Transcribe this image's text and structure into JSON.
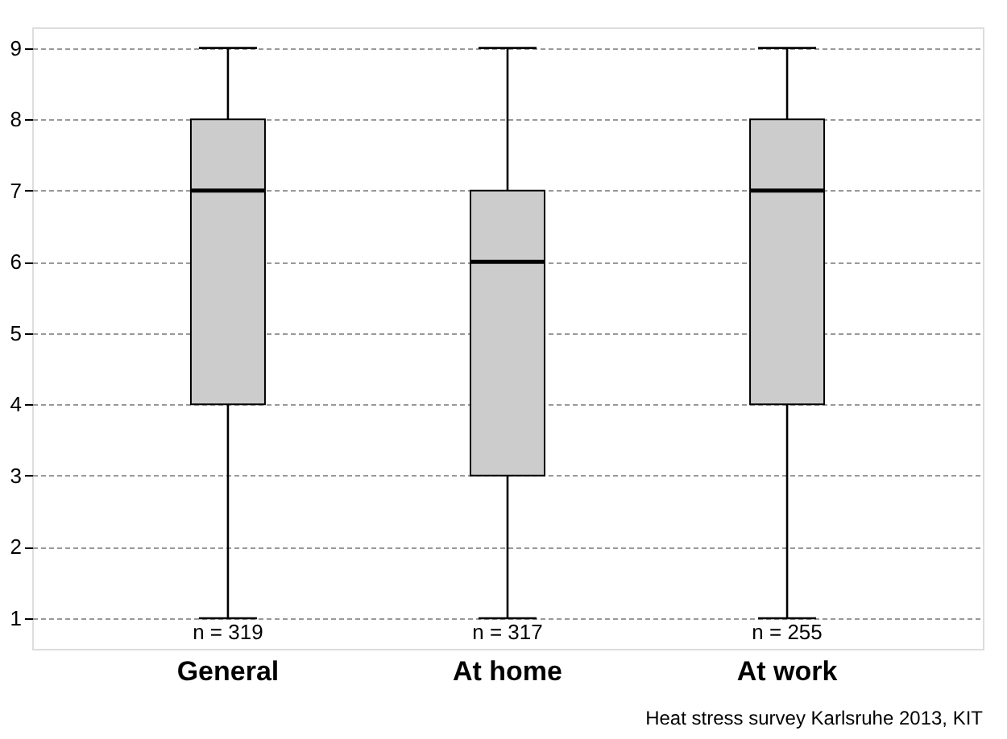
{
  "chart_data": {
    "type": "box",
    "categories": [
      "General",
      "At home",
      "At work"
    ],
    "boxes": [
      {
        "low": 1,
        "q1": 4,
        "median": 7,
        "q3": 8,
        "high": 9
      },
      {
        "low": 1,
        "q1": 3,
        "median": 6,
        "q3": 7,
        "high": 9
      },
      {
        "low": 1,
        "q1": 4,
        "median": 7,
        "q3": 8,
        "high": 9
      }
    ],
    "color": "#cccccc",
    "ylim": [
      0.57,
      9.29
    ],
    "yticks": [
      1,
      2,
      3,
      4,
      5,
      6,
      7,
      8,
      9
    ],
    "grid": "y",
    "annotations": [
      {
        "text": "n = 319",
        "x": "General",
        "y": 1
      },
      {
        "text": "n = 317",
        "x": "At home",
        "y": 1
      },
      {
        "text": "n = 255",
        "x": "At work",
        "y": 1
      },
      "Heat stress survey Karlsruhe 2013, KIT"
    ]
  }
}
